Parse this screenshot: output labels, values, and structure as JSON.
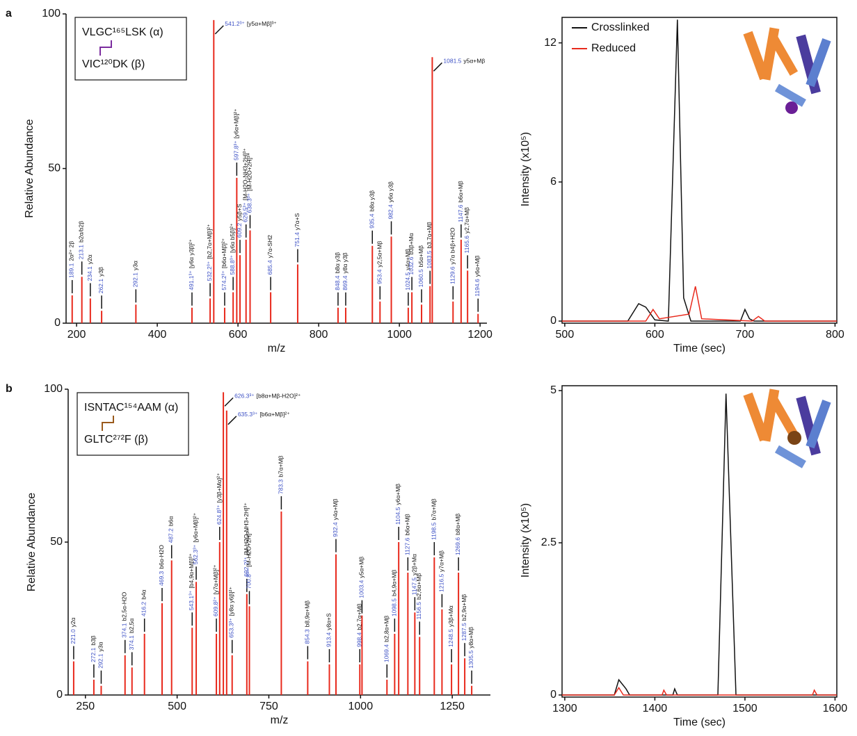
{
  "chart_data": [
    {
      "type": "bar",
      "panel_label": "a",
      "xlabel": "m/z",
      "ylabel": "Relative Abundance",
      "color": "#e8291c",
      "xlim": [
        174,
        1217
      ],
      "xticks": [
        200,
        400,
        600,
        800,
        1000,
        1200
      ],
      "ylim": [
        0,
        100
      ],
      "yticks": [
        0,
        50,
        100
      ],
      "peptides": [
        "VLGC¹⁶⁵LSK (α)",
        "VIC¹²⁰DK (β)"
      ],
      "link_color": "#7b2c9e",
      "x": [
        189.1,
        213.1,
        234.1,
        262.1,
        347,
        486,
        531,
        540,
        567,
        588,
        597,
        605,
        620,
        630,
        681,
        748,
        848,
        867,
        933,
        952,
        980,
        1022,
        1031,
        1055,
        1076,
        1081.5,
        1133,
        1153,
        1169,
        1195
      ],
      "values": [
        9,
        15,
        8,
        4,
        6,
        5,
        8,
        98,
        5,
        10,
        47,
        22,
        27,
        30,
        10,
        19,
        5,
        5,
        25,
        7,
        28,
        5,
        10,
        6,
        12,
        86,
        7,
        27,
        17,
        3
      ],
      "mz_labels": [
        "189.1",
        "213.1",
        "234.1",
        "262.1",
        "292.1",
        "491.1³⁺",
        "532.2³⁺",
        "541.2³⁺",
        "574.2³⁺",
        "588.8³⁺",
        "597.8³⁺",
        "609.2",
        "629.5³⁺",
        "638.3³⁺",
        "685.4",
        "751.4",
        "848.4",
        "869.4",
        "935.4",
        "953.4",
        "982.4",
        "1024.5",
        "1032.6",
        "1060.5",
        "1083.5",
        "1081.5",
        "1129.6",
        "1147.6",
        "1165.6",
        "1194.6"
      ],
      "ion_labels": [
        "2α²⁺ 2β",
        "b2α/b2β",
        "y2α",
        "y3β",
        "y3α",
        "[y6α y3β]²⁺",
        "[b2,7α+Mβ]²⁺",
        "[y5α+Mβ]³⁺",
        "[b6α+Mβ]²⁺",
        "[y6α b5β]²⁺",
        "[y6α+Mβ]²⁺",
        "y5β+S",
        "[M-H2O-NH3+2H]³⁺",
        "[M-H2O+2H]³⁺",
        "y7α-SH2",
        "y7α+S",
        "b8α y3β",
        "y8α y3β",
        "b8α y3β",
        "y2,5α+Mβ",
        "y6α y3β",
        "y4α+Mβ",
        "b3β+Mα",
        "b5α+Mβ",
        "b3,7α+Mβ",
        "y5α+Mβ",
        "y7α b4β+H2O",
        "b6α+Mβ",
        "y2,7α+Mβ",
        "y6α+Mβ"
      ]
    },
    {
      "type": "line",
      "xlabel": "Time (sec)",
      "ylabel": "Intensity (x10⁵)",
      "xlim": [
        497,
        802
      ],
      "xticks": [
        500,
        600,
        700,
        800
      ],
      "ylim": [
        0,
        13.1
      ],
      "yticks": [
        0,
        6,
        12
      ],
      "legend": "upper left",
      "series": [
        {
          "name": "Crosslinked",
          "color": "#111111",
          "x": [
            497,
            570,
            582,
            590,
            600,
            615,
            625,
            632,
            640,
            695,
            700,
            705,
            710,
            802
          ],
          "values": [
            0,
            0,
            0.75,
            0.6,
            0.05,
            0,
            13,
            1,
            0,
            0,
            0.5,
            0.1,
            0,
            0
          ]
        },
        {
          "name": "Reduced",
          "color": "#e8291c",
          "x": [
            497,
            590,
            598,
            605,
            638,
            645,
            652,
            708,
            715,
            722,
            802
          ],
          "values": [
            0,
            0,
            0.5,
            0.1,
            0.3,
            1.5,
            0.1,
            0,
            0.2,
            0,
            0
          ]
        }
      ]
    },
    {
      "type": "bar",
      "panel_label": "b",
      "xlabel": "m/z",
      "ylabel": "Relative Abundance",
      "color": "#e8291c",
      "xlim": [
        203,
        1354
      ],
      "xticks": [
        250,
        500,
        750,
        1000,
        1250
      ],
      "ylim": [
        0,
        100
      ],
      "yticks": [
        0,
        50,
        100
      ],
      "peptides": [
        "ISNTAC¹⁵⁴AAM (α)",
        "GLTC²⁷²F (β)"
      ],
      "link_color": "#9a5a1c",
      "x": [
        218,
        273,
        293,
        358,
        377,
        411,
        459,
        485,
        541,
        552,
        607,
        616,
        626,
        635,
        650,
        690,
        697,
        784,
        856,
        915,
        933,
        998,
        1004,
        1072,
        1093,
        1104,
        1129,
        1148,
        1161,
        1201,
        1222,
        1248,
        1267,
        1284,
        1303
      ],
      "values": [
        11,
        5,
        3,
        13,
        9,
        20,
        30,
        44,
        22,
        37,
        20,
        50,
        99,
        93,
        13,
        33,
        29,
        60,
        11,
        10,
        46,
        10,
        26,
        5,
        20,
        50,
        40,
        27,
        19,
        45,
        28,
        10,
        40,
        12,
        3
      ],
      "mz_labels": [
        "221.0",
        "272.1",
        "292.1",
        "374.1",
        "374.1",
        "416.2",
        "469.3",
        "487.2",
        "543.1³⁺",
        "562.3³⁺",
        "609.8²⁺",
        "624.8³⁺",
        "626.3³⁺",
        "635.3³⁺",
        "653.3³⁺",
        "692.2³⁺",
        "700.8³⁺",
        "783.3",
        "854.3",
        "913.4",
        "932.4",
        "998.4",
        "1003.4",
        "1069.4",
        "1098.5",
        "1104.5",
        "1127.6",
        "1147.5",
        "1156.5",
        "1198.5",
        "1216.5",
        "1248.5",
        "1269.6",
        "1287.5",
        "1305.5"
      ],
      "ion_labels": [
        "y2α",
        "b3β",
        "y3α",
        "b2,5α-H2O",
        "b2,5α",
        "b4α",
        "b6α-H2O",
        "b6α",
        "[b4,9α+Mβ]³⁺",
        "[y6α+Mβ]²⁺",
        "[y7α+Mβ]²⁺",
        "[y3β+Mα]²⁺",
        "[b8α+Mβ-H2O]²⁺",
        "[b6α+Mβ]²⁺",
        "[y8α y6β]²⁺",
        "[M-H2O-NH3+2H]³⁺",
        "[M-H2O+2H]³⁺",
        "b7α+Mβ",
        "b8,9α+Mβ",
        "y8α+S",
        "y4α+Mβ",
        "b2,7α+Mβ",
        "y5α+Mβ",
        "b2,8α+Mβ",
        "b4,9α+Mβ",
        "y6α+Mβ",
        "b6α+Mβ",
        "y2β+Mα",
        "b2,6α+Mβ",
        "b7α+Mβ",
        "y7α+Mβ",
        "y3β+Mα",
        "b8α+Mβ",
        "b2,9α+Mβ",
        "y8α+Mβ"
      ]
    },
    {
      "type": "line",
      "xlabel": "Time (sec)",
      "ylabel": "Intensity (x10⁵)",
      "xlim": [
        1297,
        1602
      ],
      "xticks": [
        1300,
        1400,
        1500,
        1600
      ],
      "ylim": [
        0,
        5.08
      ],
      "yticks": [
        0,
        2.5,
        5
      ],
      "series": [
        {
          "color": "#111111",
          "x": [
            1297,
            1355,
            1360,
            1368,
            1372,
            1420,
            1422,
            1425,
            1470,
            1479,
            1490,
            1602
          ],
          "values": [
            0,
            0,
            0.25,
            0.1,
            0,
            0,
            0.1,
            0,
            0,
            4.95,
            0,
            0
          ]
        },
        {
          "color": "#e8291c",
          "x": [
            1297,
            1355,
            1360,
            1365,
            1408,
            1410,
            1413,
            1575,
            1577,
            1580,
            1602
          ],
          "values": [
            0,
            0,
            0.12,
            0,
            0,
            0.08,
            0,
            0,
            0.08,
            0,
            0
          ]
        }
      ]
    }
  ]
}
